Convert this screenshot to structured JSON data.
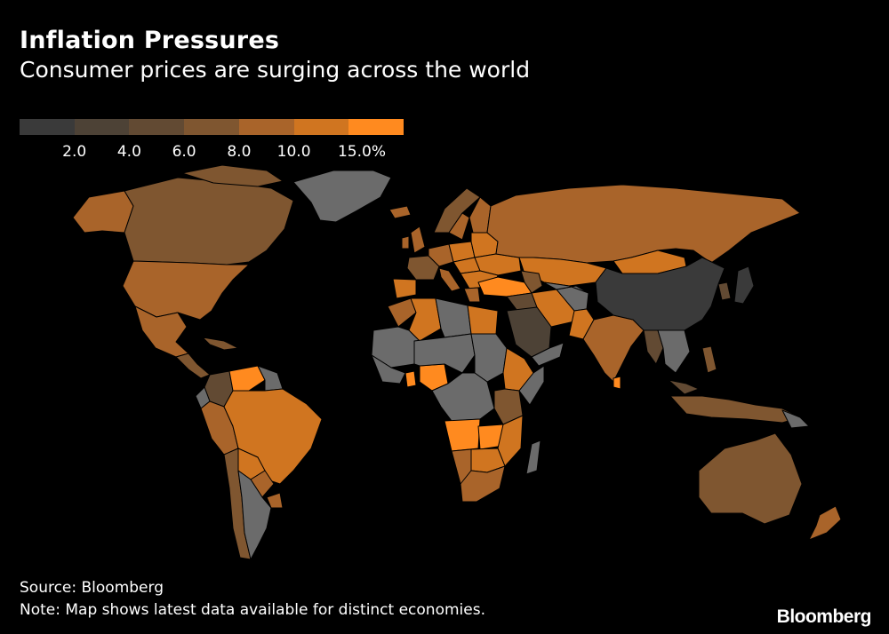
{
  "header": {
    "title": "Inflation Pressures",
    "subtitle": "Consumer prices are surging across the world"
  },
  "legend": {
    "colors": [
      "#3a3a3a",
      "#4d4236",
      "#624a33",
      "#7f5630",
      "#a9642a",
      "#d07520",
      "#ff8a1f"
    ],
    "ticks": [
      "2.0",
      "4.0",
      "6.0",
      "8.0",
      "10.0",
      "15.0%"
    ]
  },
  "map": {
    "no_data_color": "#6b6b6b",
    "background": "#000000"
  },
  "footer": {
    "source": "Source: Bloomberg",
    "note": "Note: Map shows latest data available for distinct economies.",
    "brand": "Bloomberg"
  }
}
